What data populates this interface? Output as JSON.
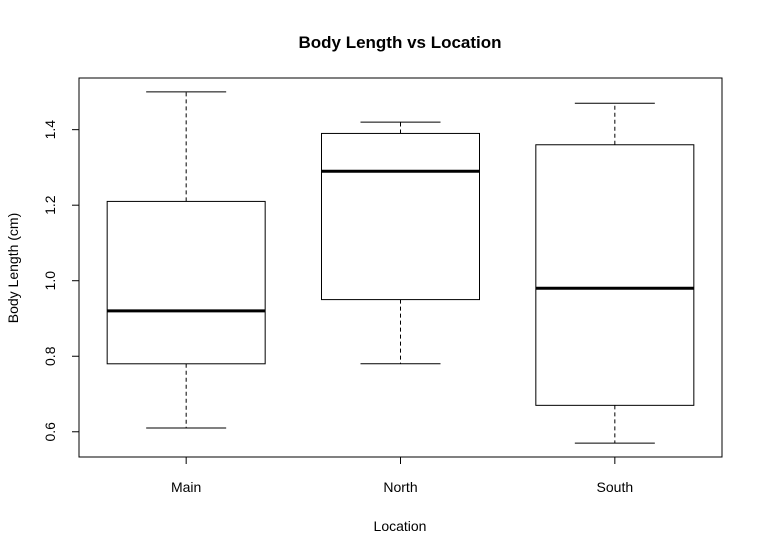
{
  "chart_data": {
    "type": "boxplot",
    "title": "Body Length vs Location",
    "xlabel": "Location",
    "ylabel": "Body Length (cm)",
    "categories": [
      "Main",
      "North",
      "South"
    ],
    "boxes": [
      {
        "category": "Main",
        "min": 0.61,
        "q1": 0.78,
        "median": 0.92,
        "q3": 1.21,
        "max": 1.5
      },
      {
        "category": "North",
        "min": 0.78,
        "q1": 0.95,
        "median": 1.29,
        "q3": 1.39,
        "max": 1.42
      },
      {
        "category": "South",
        "min": 0.57,
        "q1": 0.67,
        "median": 0.98,
        "q3": 1.36,
        "max": 1.47
      }
    ],
    "yticks": [
      0.6,
      0.8,
      1.0,
      1.2,
      1.4
    ],
    "ytick_labels": [
      "0.6",
      "0.8",
      "1.0",
      "1.2",
      "1.4"
    ],
    "ylim": [
      0.5332,
      1.5368
    ],
    "grid": false,
    "legend": "none",
    "colors": {
      "box_fill": "#ffffff",
      "stroke": "#000000"
    }
  }
}
